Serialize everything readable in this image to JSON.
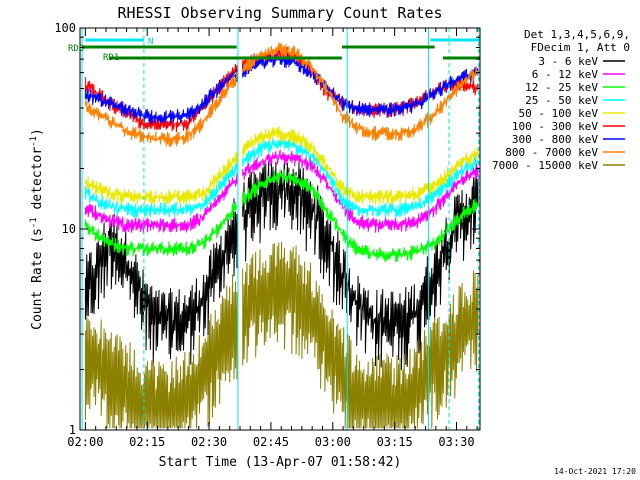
{
  "chart_data": {
    "type": "line",
    "title": "RHESSI Observing Summary Count Rates",
    "xlabel": "Start Time (13-Apr-07 01:58:42)",
    "ylabel": "Count Rate (s",
    "ylabel_sup": "-1",
    "ylabel_mid": " detector",
    "ylabel_end": ")",
    "yscale": "log",
    "ylim": [
      1,
      100
    ],
    "xlim_min": [
      0,
      97
    ],
    "x_unit": "minutes since 01:58:42",
    "x_ticks": [
      {
        "min": 1.3,
        "label": "02:00"
      },
      {
        "min": 16.3,
        "label": "02:15"
      },
      {
        "min": 31.3,
        "label": "02:30"
      },
      {
        "min": 46.3,
        "label": "02:45"
      },
      {
        "min": 61.3,
        "label": "03:00"
      },
      {
        "min": 76.3,
        "label": "03:15"
      },
      {
        "min": 91.3,
        "label": "03:30"
      }
    ],
    "y_tick_labels": [
      {
        "value": 100,
        "label": "100"
      },
      {
        "value": 10,
        "label": "10"
      },
      {
        "value": 1,
        "label": "1"
      }
    ],
    "legend_header": [
      "Det 1,3,4,5,6,9,",
      "FDecim 1, Att 0"
    ],
    "legend_placement": "right",
    "series": [
      {
        "name": "3 - 6 keV",
        "color": "#000000",
        "profile": [
          4.5,
          6,
          9,
          7,
          4.5,
          3.5,
          3.5,
          3.6,
          4.4,
          6.5,
          10,
          13,
          15,
          16,
          15.5,
          13,
          9.5,
          6,
          4.2,
          3.5,
          3.5,
          3.5,
          4,
          6,
          9,
          12,
          14
        ]
      },
      {
        "name": "6 - 12 keV",
        "color": "#ff00ff",
        "profile": [
          13,
          12,
          11,
          10.5,
          10.5,
          10.5,
          10.5,
          10.5,
          11.5,
          14,
          17,
          20,
          22,
          23,
          22.5,
          21,
          17,
          13,
          11,
          10.5,
          10.5,
          10.5,
          11,
          12.5,
          15,
          18,
          20
        ]
      },
      {
        "name": "12 - 25 keV",
        "color": "#00ff00",
        "profile": [
          11,
          9.5,
          8.5,
          8,
          8,
          8,
          8,
          8,
          8.5,
          10,
          12.5,
          15,
          17,
          18.5,
          18,
          16,
          12.5,
          9.5,
          8,
          7.5,
          7.5,
          7.5,
          7.8,
          8.5,
          10,
          12,
          13.5
        ]
      },
      {
        "name": "25 - 50 keV",
        "color": "#00ffff",
        "profile": [
          16,
          14,
          13,
          12.5,
          12.5,
          12.5,
          12.5,
          12.5,
          13,
          16,
          19.5,
          23,
          25.5,
          27,
          26,
          23,
          19,
          14,
          12.5,
          12.5,
          12.5,
          12.5,
          13,
          14.5,
          17,
          20,
          22
        ]
      },
      {
        "name": "50 - 100 keV",
        "color": "#e8e800",
        "profile": [
          18,
          16,
          15,
          14.5,
          14.5,
          14.5,
          14.5,
          14.5,
          15,
          18,
          22,
          26,
          29,
          30,
          29,
          26,
          21,
          16,
          14.5,
          14.5,
          14.5,
          14.5,
          15,
          16.5,
          19,
          22,
          24
        ]
      },
      {
        "name": "100 - 300 keV",
        "color": "#ff0000",
        "profile": [
          55,
          48,
          42,
          38,
          34,
          33,
          33,
          34,
          40,
          50,
          60,
          68,
          72,
          75,
          73,
          62,
          48,
          42,
          40,
          39,
          39,
          40,
          43,
          48,
          52,
          52,
          50
        ]
      },
      {
        "name": "300 - 800 keV",
        "color": "#0000ff",
        "profile": [
          48,
          45,
          42,
          39,
          37,
          36,
          36,
          37,
          42,
          50,
          58,
          64,
          68,
          70,
          68,
          60,
          50,
          43,
          40,
          39,
          39,
          40,
          42,
          47,
          53,
          58,
          60
        ]
      },
      {
        "name": "800 - 7000 keV",
        "color": "#ff8000",
        "profile": [
          43,
          38,
          34,
          31,
          29,
          28,
          28,
          29,
          34,
          43,
          55,
          66,
          74,
          78,
          75,
          65,
          50,
          37,
          32,
          30,
          30,
          30,
          32,
          37,
          45,
          55,
          62
        ]
      },
      {
        "name": "7000 - 15000 keV",
        "color": "#8b8000",
        "profile": [
          2.2,
          2.5,
          2,
          1.8,
          1.5,
          1.4,
          1.4,
          1.6,
          2,
          2.8,
          3.8,
          4.6,
          5.2,
          5.5,
          5.2,
          4.3,
          3.1,
          2.1,
          1.6,
          1.5,
          1.5,
          1.5,
          1.8,
          2.3,
          2.9,
          3.5,
          4.2
        ]
      }
    ],
    "gaps": [
      {
        "series": "3 - 6 keV",
        "from_min": 39,
        "to_min": 64
      },
      {
        "series": "6 - 12 keV",
        "from_min": 0,
        "to_min": 0
      },
      {
        "series": "100 - 300 keV",
        "from_min": 0,
        "to_min": 0
      }
    ],
    "markers": [
      {
        "label": "RD0",
        "color": "#008000"
      },
      {
        "label": "RD1",
        "color": "#008000"
      },
      {
        "label": "N",
        "color": "#00ffff"
      }
    ],
    "night_min": [
      [
        1.3,
        15.5
      ],
      [
        85,
        97
      ]
    ],
    "saa_lines_min": [
      0.5,
      38.3,
      64.8,
      84.5,
      96.7
    ],
    "saa_dashed_min": [
      15.5,
      89.5,
      96.7
    ],
    "rd0_bars_min": [
      [
        0.5,
        38
      ],
      [
        63.5,
        86
      ]
    ],
    "rd1_bars_min": [
      [
        7,
        38.3
      ],
      [
        38.3,
        63.5
      ],
      [
        88,
        97
      ]
    ],
    "fill_to_ceiling_min": [
      [
        38.3,
        39.3
      ]
    ]
  },
  "footer": {
    "timestamp": "14-Oct-2021 17:20"
  }
}
